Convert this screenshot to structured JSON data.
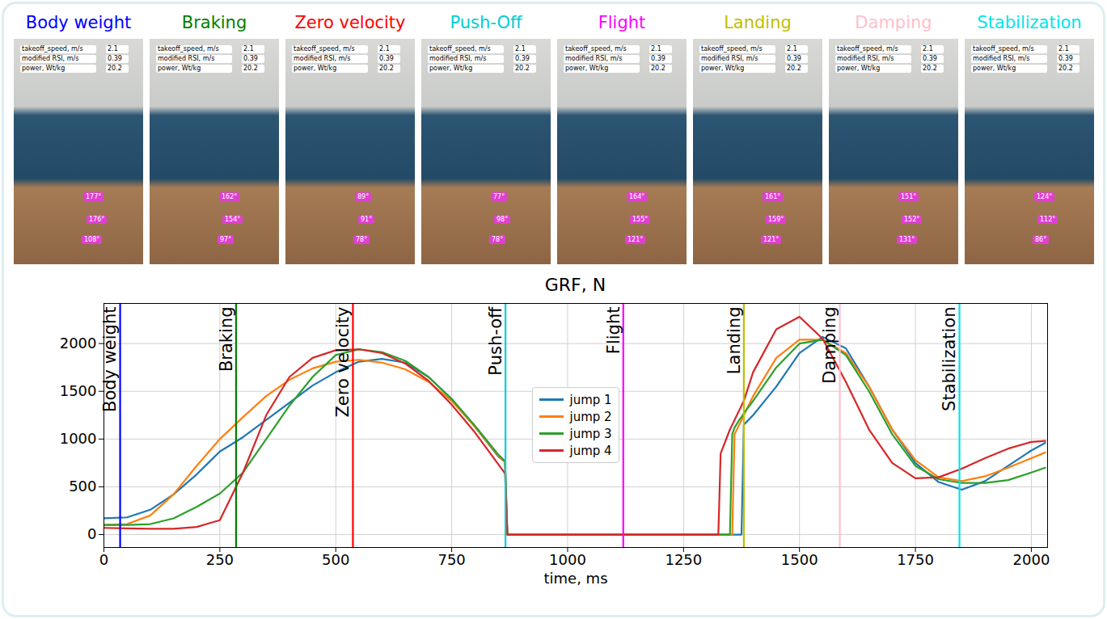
{
  "frames": [
    {
      "title": "Body weight",
      "color": "#0000ff",
      "angles": [
        "177°",
        "176°",
        "108°"
      ]
    },
    {
      "title": "Braking",
      "color": "#008000",
      "angles": [
        "162°",
        "154°",
        "97°"
      ]
    },
    {
      "title": "Zero velocity",
      "color": "#ff0000",
      "angles": [
        "89°",
        "91°",
        "78°"
      ]
    },
    {
      "title": "Push-Off",
      "color": "#00ced1",
      "angles": [
        "77°",
        "98°",
        "78°"
      ]
    },
    {
      "title": "Flight",
      "color": "#ff00ff",
      "angles": [
        "164°",
        "155°",
        "121°"
      ]
    },
    {
      "title": "Landing",
      "color": "#bfbf00",
      "angles": [
        "161°",
        "159°",
        "121°"
      ]
    },
    {
      "title": "Damping",
      "color": "#ffc0cb",
      "angles": [
        "151°",
        "152°",
        "131°"
      ]
    },
    {
      "title": "Stabilization",
      "color": "#00e5ee",
      "angles": [
        "124°",
        "112°",
        "86°"
      ]
    }
  ],
  "metrics": [
    {
      "label": "takeoff_speed, m/s",
      "value": 2.1
    },
    {
      "label": "modified RSI, m/s",
      "value": 0.39
    },
    {
      "label": "power, Wt/kg",
      "value": 20.2
    }
  ],
  "chart_data": {
    "type": "line",
    "title": "GRF, N",
    "xlabel": "time, ms",
    "xlim": [
      0,
      2035
    ],
    "ylim": [
      -135,
      2420
    ],
    "xticks": [
      0,
      250,
      500,
      750,
      1000,
      1250,
      1500,
      1750,
      2000
    ],
    "yticks": [
      0,
      500,
      1000,
      1500,
      2000
    ],
    "grid": true,
    "legend": "center",
    "x": [
      0,
      50,
      100,
      150,
      200,
      250,
      300,
      350,
      400,
      450,
      500,
      550,
      600,
      650,
      700,
      750,
      800,
      850,
      865,
      870,
      900,
      1000,
      1100,
      1200,
      1300,
      1325,
      1330,
      1350,
      1355,
      1360,
      1370,
      1375,
      1380,
      1400,
      1450,
      1500,
      1550,
      1600,
      1650,
      1700,
      1750,
      1800,
      1850,
      1900,
      1950,
      2000,
      2030
    ],
    "series": [
      {
        "name": "jump 1",
        "color": "#1f77b4",
        "values": [
          170,
          180,
          260,
          420,
          630,
          870,
          1020,
          1200,
          1380,
          1560,
          1700,
          1810,
          1840,
          1800,
          1650,
          1420,
          1130,
          820,
          760,
          0,
          0,
          0,
          0,
          0,
          0,
          0,
          0,
          0,
          0,
          0,
          0,
          0,
          1150,
          1250,
          1550,
          1900,
          2070,
          1950,
          1550,
          1100,
          750,
          550,
          470,
          560,
          720,
          880,
          960
        ]
      },
      {
        "name": "jump 2",
        "color": "#ff7f0e",
        "values": [
          100,
          110,
          200,
          420,
          720,
          1000,
          1230,
          1450,
          1620,
          1740,
          1810,
          1830,
          1800,
          1730,
          1600,
          1400,
          1130,
          830,
          760,
          0,
          0,
          0,
          0,
          0,
          0,
          0,
          0,
          0,
          0,
          1050,
          1150,
          1200,
          1250,
          1450,
          1850,
          2040,
          2040,
          1900,
          1550,
          1100,
          780,
          600,
          560,
          610,
          700,
          800,
          860
        ]
      },
      {
        "name": "jump 3",
        "color": "#2ca02c",
        "values": [
          100,
          100,
          110,
          170,
          290,
          430,
          650,
          1000,
          1350,
          1650,
          1880,
          1940,
          1910,
          1820,
          1650,
          1420,
          1140,
          840,
          770,
          0,
          0,
          0,
          0,
          0,
          0,
          0,
          0,
          0,
          1050,
          1120,
          1200,
          1230,
          1270,
          1400,
          1750,
          2000,
          2040,
          1880,
          1500,
          1050,
          720,
          580,
          540,
          540,
          570,
          650,
          700
        ]
      },
      {
        "name": "jump 4",
        "color": "#d62728",
        "values": [
          70,
          65,
          60,
          60,
          80,
          150,
          650,
          1250,
          1650,
          1850,
          1930,
          1940,
          1900,
          1790,
          1610,
          1360,
          1070,
          740,
          640,
          0,
          0,
          0,
          0,
          0,
          0,
          0,
          850,
          1100,
          1150,
          1200,
          1300,
          1350,
          1400,
          1700,
          2150,
          2280,
          2050,
          1600,
          1100,
          750,
          590,
          600,
          690,
          800,
          900,
          970,
          980
        ]
      }
    ],
    "markers": [
      {
        "label": "Body weight",
        "x": 35,
        "color": "#0000ff"
      },
      {
        "label": "Braking",
        "x": 285,
        "color": "#008000"
      },
      {
        "label": "Zero velocity",
        "x": 537,
        "color": "#ff0000"
      },
      {
        "label": "Push-off",
        "x": 866,
        "color": "#00ced1"
      },
      {
        "label": "Flight",
        "x": 1120,
        "color": "#ff00ff"
      },
      {
        "label": "Landing",
        "x": 1380,
        "color": "#bfbf00"
      },
      {
        "label": "Damping",
        "x": 1587,
        "color": "#ffc0cb"
      },
      {
        "label": "Stabilization",
        "x": 1845,
        "color": "#00e5ee"
      }
    ]
  }
}
